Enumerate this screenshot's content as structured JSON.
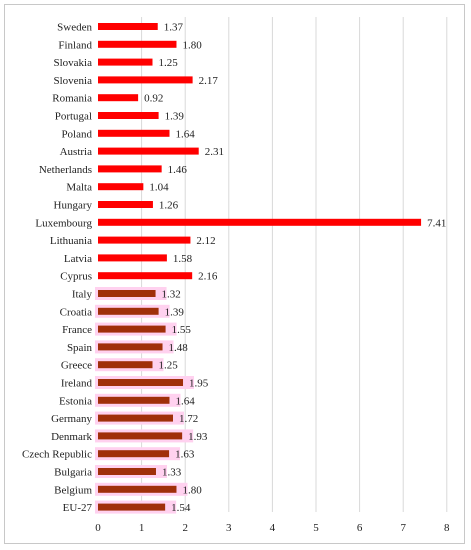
{
  "chart_data": {
    "type": "bar",
    "orientation": "horizontal",
    "title": "",
    "xlabel": "",
    "ylabel": "",
    "xlim": [
      0,
      8
    ],
    "x_ticks": [
      "0",
      "1",
      "2",
      "3",
      "4",
      "5",
      "6",
      "7",
      "8"
    ],
    "grid": "vertical",
    "colors": {
      "bar": "#ff0000",
      "bar_dark": "#a0300a",
      "highlight": "#ffd1ef",
      "grid": "#d9d9d9"
    },
    "categories": [
      "Sweden",
      "Finland",
      "Slovakia",
      "Slovenia",
      "Romania",
      "Portugal",
      "Poland",
      "Austria",
      "Netherlands",
      "Malta",
      "Hungary",
      "Luxembourg",
      "Lithuania",
      "Latvia",
      "Cyprus",
      "Italy",
      "Croatia",
      "France",
      "Spain",
      "Greece",
      "Ireland",
      "Estonia",
      "Germany",
      "Denmark",
      "Czech Republic",
      "Bulgaria",
      "Belgium",
      "EU-27"
    ],
    "values": [
      1.37,
      1.8,
      1.25,
      2.17,
      0.92,
      1.39,
      1.64,
      2.31,
      1.46,
      1.04,
      1.26,
      7.41,
      2.12,
      1.58,
      2.16,
      1.32,
      1.39,
      1.55,
      1.48,
      1.25,
      1.95,
      1.64,
      1.72,
      1.93,
      1.63,
      1.33,
      1.8,
      1.54
    ],
    "labels": [
      "1.37",
      "1.80",
      "1.25",
      "2.17",
      "0.92",
      "1.39",
      "1.64",
      "2.31",
      "1.46",
      "1.04",
      "1.26",
      "7.41",
      "2.12",
      "1.58",
      "2.16",
      "1.32",
      "1.39",
      "1.55",
      "1.48",
      "1.25",
      "1.95",
      "1.64",
      "1.72",
      "1.93",
      "1.63",
      "1.33",
      "1.80",
      "1.54"
    ],
    "highlighted": [
      false,
      false,
      false,
      false,
      false,
      false,
      false,
      false,
      false,
      false,
      false,
      false,
      false,
      false,
      false,
      true,
      true,
      true,
      true,
      true,
      true,
      true,
      true,
      true,
      true,
      true,
      true,
      true
    ]
  }
}
